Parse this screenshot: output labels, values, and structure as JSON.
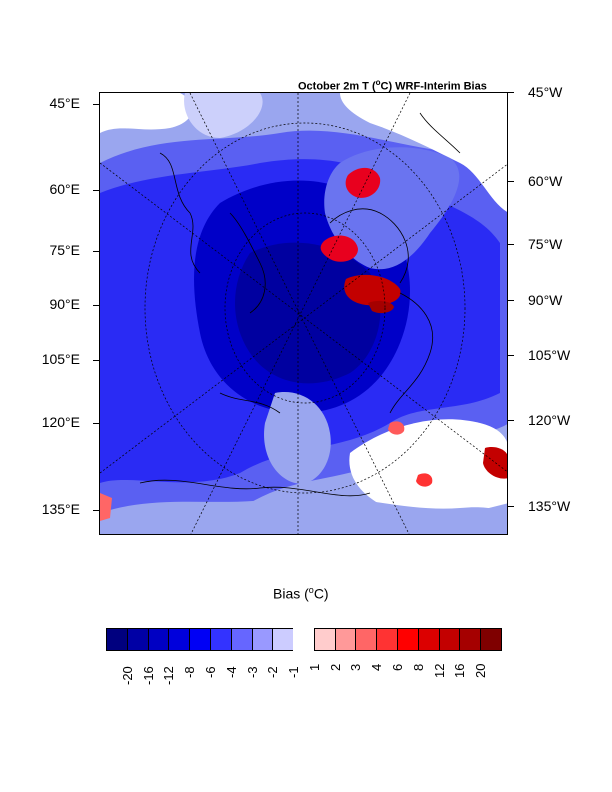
{
  "map": {
    "title_prefix": "October 2m T (",
    "title_sup": "o",
    "title_suffix": "C) WRF-Interim Bias",
    "left_labels": [
      "45°E",
      "60°E",
      "75°E",
      "90°E",
      "105°E",
      "120°E",
      "135°E"
    ],
    "right_labels": [
      "45°W",
      "60°W",
      "75°W",
      "90°W",
      "105°W",
      "120°W",
      "135°W"
    ]
  },
  "colorbar": {
    "title_prefix": "Bias (",
    "title_sup": "o",
    "title_suffix": "C)",
    "labels": [
      "-20",
      "-16",
      "-12",
      "-8",
      "-6",
      "-4",
      "-3",
      "-2",
      "-1",
      "1",
      "2",
      "3",
      "4",
      "6",
      "8",
      "12",
      "16",
      "20"
    ],
    "colors": [
      "#00007f",
      "#0000a5",
      "#0000c3",
      "#0000dc",
      "#0000f5",
      "#3333ff",
      "#6666ff",
      "#9999ff",
      "#ccccff",
      "#ffffff",
      "#ffcccc",
      "#ff9999",
      "#ff6666",
      "#ff3333",
      "#ff0000",
      "#dc0000",
      "#c30000",
      "#a50000",
      "#7f0000"
    ]
  }
}
